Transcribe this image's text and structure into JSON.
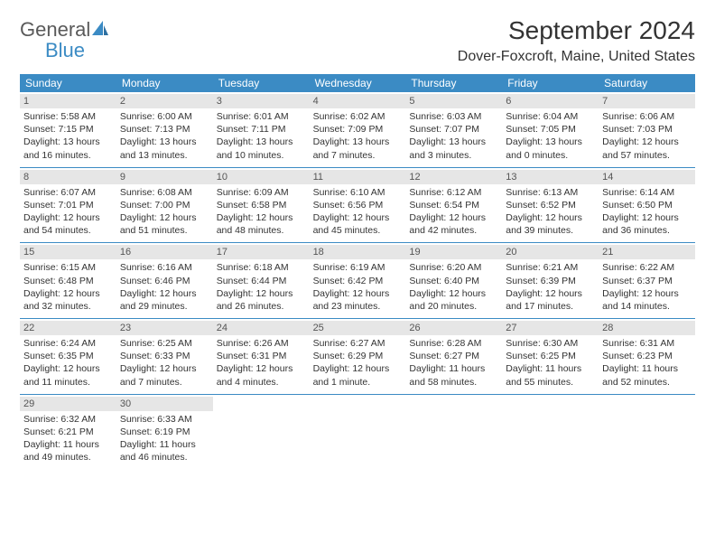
{
  "logo": {
    "text1": "General",
    "text2": "Blue"
  },
  "title": "September 2024",
  "location": "Dover-Foxcroft, Maine, United States",
  "header_bg": "#3b8bc4",
  "daynum_bg": "#e6e6e6",
  "text_color": "#333333",
  "day_names": [
    "Sunday",
    "Monday",
    "Tuesday",
    "Wednesday",
    "Thursday",
    "Friday",
    "Saturday"
  ],
  "days": [
    {
      "n": "1",
      "sr": "5:58 AM",
      "ss": "7:15 PM",
      "dl": "13 hours and 16 minutes."
    },
    {
      "n": "2",
      "sr": "6:00 AM",
      "ss": "7:13 PM",
      "dl": "13 hours and 13 minutes."
    },
    {
      "n": "3",
      "sr": "6:01 AM",
      "ss": "7:11 PM",
      "dl": "13 hours and 10 minutes."
    },
    {
      "n": "4",
      "sr": "6:02 AM",
      "ss": "7:09 PM",
      "dl": "13 hours and 7 minutes."
    },
    {
      "n": "5",
      "sr": "6:03 AM",
      "ss": "7:07 PM",
      "dl": "13 hours and 3 minutes."
    },
    {
      "n": "6",
      "sr": "6:04 AM",
      "ss": "7:05 PM",
      "dl": "13 hours and 0 minutes."
    },
    {
      "n": "7",
      "sr": "6:06 AM",
      "ss": "7:03 PM",
      "dl": "12 hours and 57 minutes."
    },
    {
      "n": "8",
      "sr": "6:07 AM",
      "ss": "7:01 PM",
      "dl": "12 hours and 54 minutes."
    },
    {
      "n": "9",
      "sr": "6:08 AM",
      "ss": "7:00 PM",
      "dl": "12 hours and 51 minutes."
    },
    {
      "n": "10",
      "sr": "6:09 AM",
      "ss": "6:58 PM",
      "dl": "12 hours and 48 minutes."
    },
    {
      "n": "11",
      "sr": "6:10 AM",
      "ss": "6:56 PM",
      "dl": "12 hours and 45 minutes."
    },
    {
      "n": "12",
      "sr": "6:12 AM",
      "ss": "6:54 PM",
      "dl": "12 hours and 42 minutes."
    },
    {
      "n": "13",
      "sr": "6:13 AM",
      "ss": "6:52 PM",
      "dl": "12 hours and 39 minutes."
    },
    {
      "n": "14",
      "sr": "6:14 AM",
      "ss": "6:50 PM",
      "dl": "12 hours and 36 minutes."
    },
    {
      "n": "15",
      "sr": "6:15 AM",
      "ss": "6:48 PM",
      "dl": "12 hours and 32 minutes."
    },
    {
      "n": "16",
      "sr": "6:16 AM",
      "ss": "6:46 PM",
      "dl": "12 hours and 29 minutes."
    },
    {
      "n": "17",
      "sr": "6:18 AM",
      "ss": "6:44 PM",
      "dl": "12 hours and 26 minutes."
    },
    {
      "n": "18",
      "sr": "6:19 AM",
      "ss": "6:42 PM",
      "dl": "12 hours and 23 minutes."
    },
    {
      "n": "19",
      "sr": "6:20 AM",
      "ss": "6:40 PM",
      "dl": "12 hours and 20 minutes."
    },
    {
      "n": "20",
      "sr": "6:21 AM",
      "ss": "6:39 PM",
      "dl": "12 hours and 17 minutes."
    },
    {
      "n": "21",
      "sr": "6:22 AM",
      "ss": "6:37 PM",
      "dl": "12 hours and 14 minutes."
    },
    {
      "n": "22",
      "sr": "6:24 AM",
      "ss": "6:35 PM",
      "dl": "12 hours and 11 minutes."
    },
    {
      "n": "23",
      "sr": "6:25 AM",
      "ss": "6:33 PM",
      "dl": "12 hours and 7 minutes."
    },
    {
      "n": "24",
      "sr": "6:26 AM",
      "ss": "6:31 PM",
      "dl": "12 hours and 4 minutes."
    },
    {
      "n": "25",
      "sr": "6:27 AM",
      "ss": "6:29 PM",
      "dl": "12 hours and 1 minute."
    },
    {
      "n": "26",
      "sr": "6:28 AM",
      "ss": "6:27 PM",
      "dl": "11 hours and 58 minutes."
    },
    {
      "n": "27",
      "sr": "6:30 AM",
      "ss": "6:25 PM",
      "dl": "11 hours and 55 minutes."
    },
    {
      "n": "28",
      "sr": "6:31 AM",
      "ss": "6:23 PM",
      "dl": "11 hours and 52 minutes."
    },
    {
      "n": "29",
      "sr": "6:32 AM",
      "ss": "6:21 PM",
      "dl": "11 hours and 49 minutes."
    },
    {
      "n": "30",
      "sr": "6:33 AM",
      "ss": "6:19 PM",
      "dl": "11 hours and 46 minutes."
    }
  ],
  "labels": {
    "sunrise": "Sunrise: ",
    "sunset": "Sunset: ",
    "daylight": "Daylight: "
  }
}
